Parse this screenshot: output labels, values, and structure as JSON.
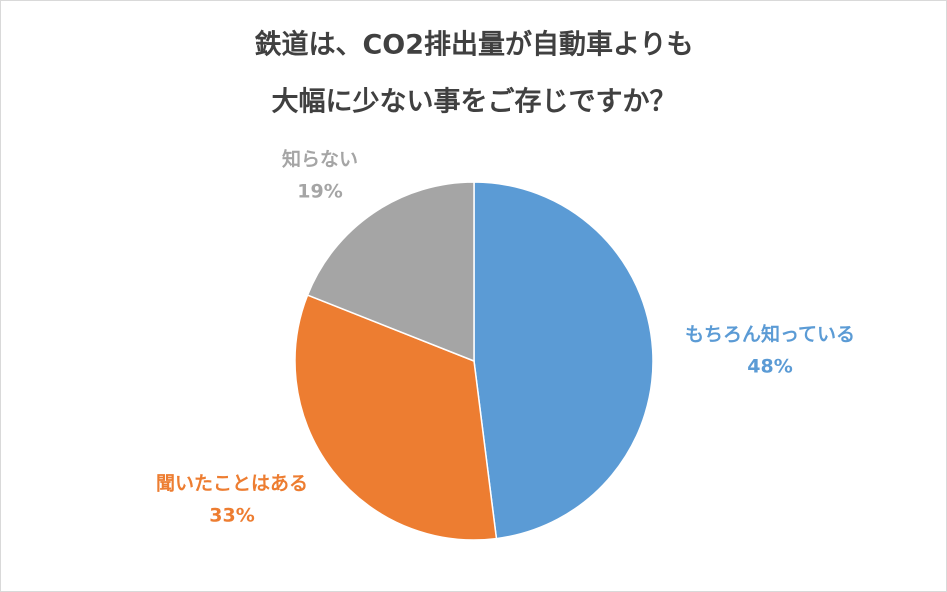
{
  "chart_data": {
    "type": "pie",
    "title": [
      "鉄道は、CO2排出量が自動車よりも",
      "大幅に少ない事をご存じですか？"
    ],
    "categories": [
      "もちろん知っている",
      "聞いたことはある",
      "知らない"
    ],
    "values": [
      48,
      33,
      19
    ],
    "value_labels": [
      "48%",
      "33%",
      "19%"
    ],
    "colors": [
      "#5b9bd5",
      "#ed7d31",
      "#a5a5a5"
    ]
  }
}
